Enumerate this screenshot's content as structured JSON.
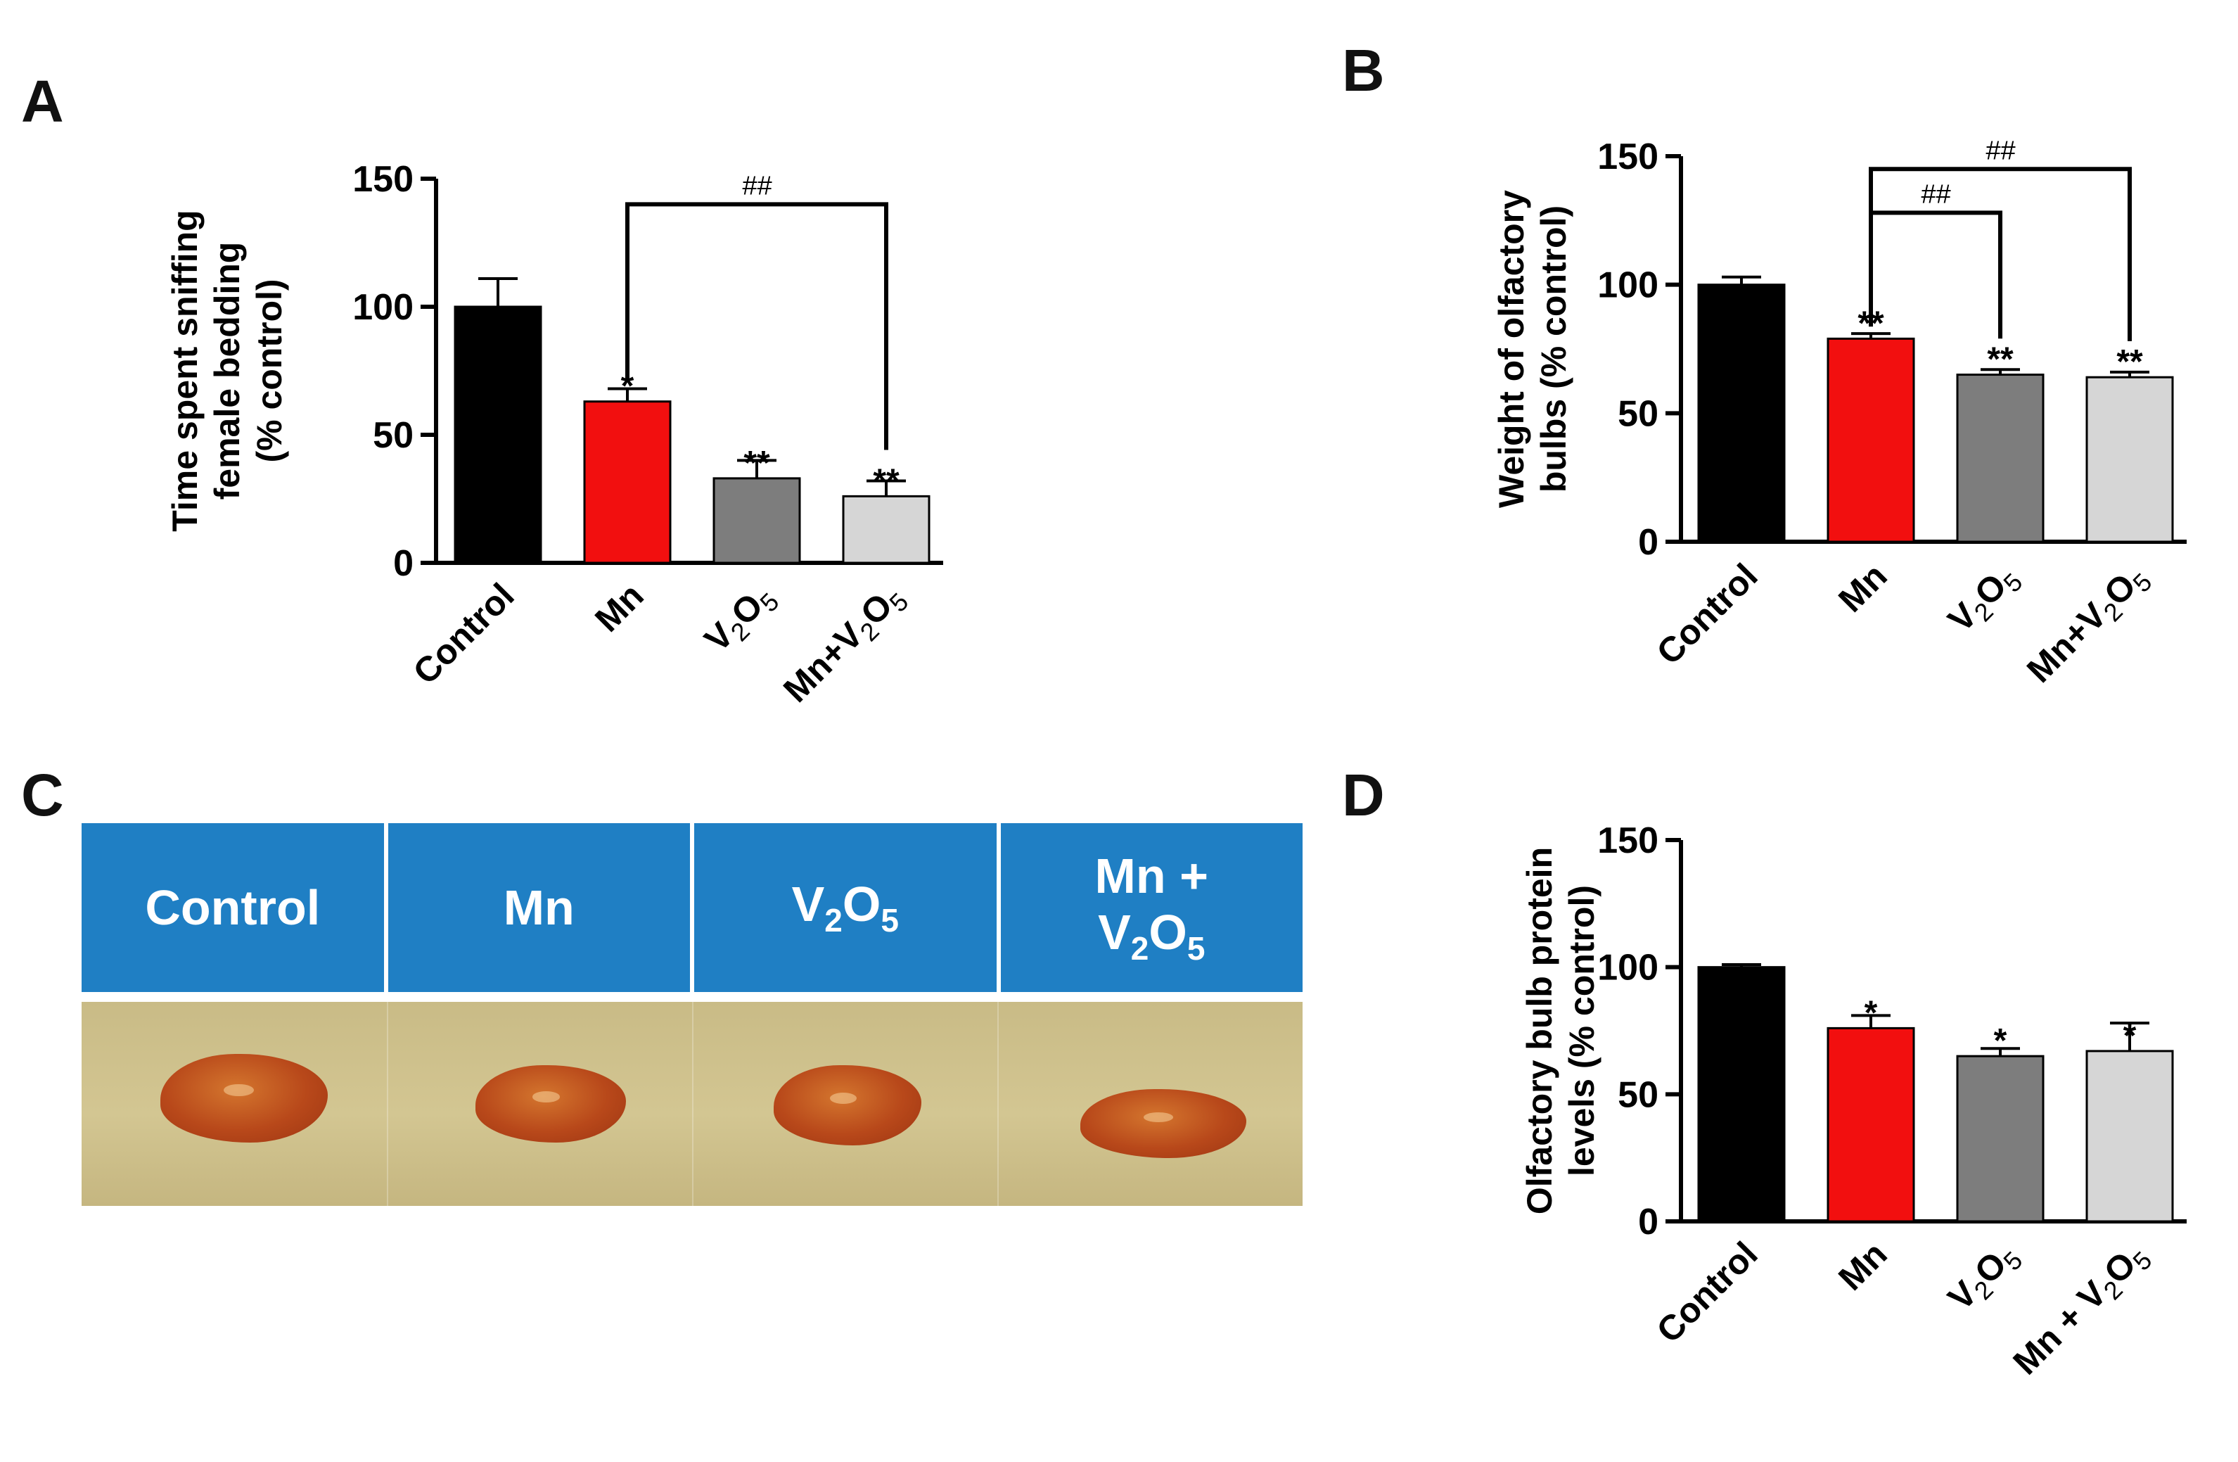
{
  "panels": {
    "A": "A",
    "B": "B",
    "C": "C",
    "D": "D"
  },
  "colors": {
    "Control": "#000000",
    "Mn": "#f20f0f",
    "V2O5": "#7d7d7d",
    "MnV2O5": "#d6d6d6"
  },
  "chart_data": [
    {
      "id": "A",
      "type": "bar",
      "title": "",
      "ylabel_lines": [
        "Time spent sniffing",
        "female bedding",
        "(% control)"
      ],
      "categories": [
        {
          "pre": "Control"
        },
        {
          "pre": "Mn"
        },
        {
          "pre": "V",
          "s1": "2",
          "mid": "O",
          "s2": "5"
        },
        {
          "pre": "Mn+V",
          "s1": "2",
          "mid": "O",
          "s2": "5"
        }
      ],
      "values": [
        100,
        63,
        33,
        26
      ],
      "errors": [
        11,
        5,
        7,
        6
      ],
      "sig": [
        "",
        "*",
        "**",
        "**"
      ],
      "brackets": [
        {
          "from": 1,
          "to": 3,
          "level": 140,
          "label": "##"
        }
      ],
      "ylim": [
        0,
        150
      ],
      "yticks": [
        0,
        50,
        100,
        150
      ],
      "ytick_labels": [
        "0",
        "50",
        "100",
        "150"
      ]
    },
    {
      "id": "B",
      "type": "bar",
      "title": "",
      "ylabel_lines": [
        "Weight of olfactory",
        "bulbs (% control)"
      ],
      "categories": [
        {
          "pre": "Control"
        },
        {
          "pre": "Mn"
        },
        {
          "pre": "V",
          "s1": "2",
          "mid": "O",
          "s2": "5"
        },
        {
          "pre": "Mn+V",
          "s1": "2",
          "mid": "O",
          "s2": "5"
        }
      ],
      "values": [
        100,
        79,
        65,
        64
      ],
      "errors": [
        3,
        2,
        2,
        2
      ],
      "sig": [
        "",
        "**",
        "**",
        "**"
      ],
      "brackets": [
        {
          "from": 1,
          "to": 2,
          "level": 128,
          "label": "##"
        },
        {
          "from": 1,
          "to": 3,
          "level": 145,
          "label": "##"
        }
      ],
      "ylim": [
        0,
        150
      ],
      "yticks": [
        0,
        50,
        100,
        150
      ],
      "ytick_labels": [
        "0",
        "50",
        "100",
        "150"
      ]
    },
    {
      "id": "D",
      "type": "bar",
      "title": "",
      "ylabel_lines": [
        "Olfactory bulb protein",
        "levels (% control)"
      ],
      "categories": [
        {
          "pre": "Control"
        },
        {
          "pre": "Mn"
        },
        {
          "pre": "V",
          "s1": "2",
          "mid": "O",
          "s2": "5"
        },
        {
          "pre": "Mn + V",
          "s1": "2",
          "mid": "O",
          "s2": "5"
        }
      ],
      "values": [
        100,
        76,
        65,
        67
      ],
      "errors": [
        1,
        5,
        3,
        11
      ],
      "sig": [
        "",
        "*",
        "*",
        "*"
      ],
      "brackets": [],
      "ylim": [
        0,
        150
      ],
      "yticks": [
        0,
        50,
        100,
        150
      ],
      "ytick_labels": [
        "0",
        "50",
        "100",
        "150"
      ]
    }
  ],
  "photo": {
    "headers": [
      {
        "pre": "Control"
      },
      {
        "pre": "Mn"
      },
      {
        "pre": "V",
        "s1": "2",
        "mid": "O",
        "s2": "5"
      },
      {
        "top": "Mn +",
        "pre": "V",
        "s1": "2",
        "mid": "O",
        "s2": "5"
      }
    ]
  }
}
